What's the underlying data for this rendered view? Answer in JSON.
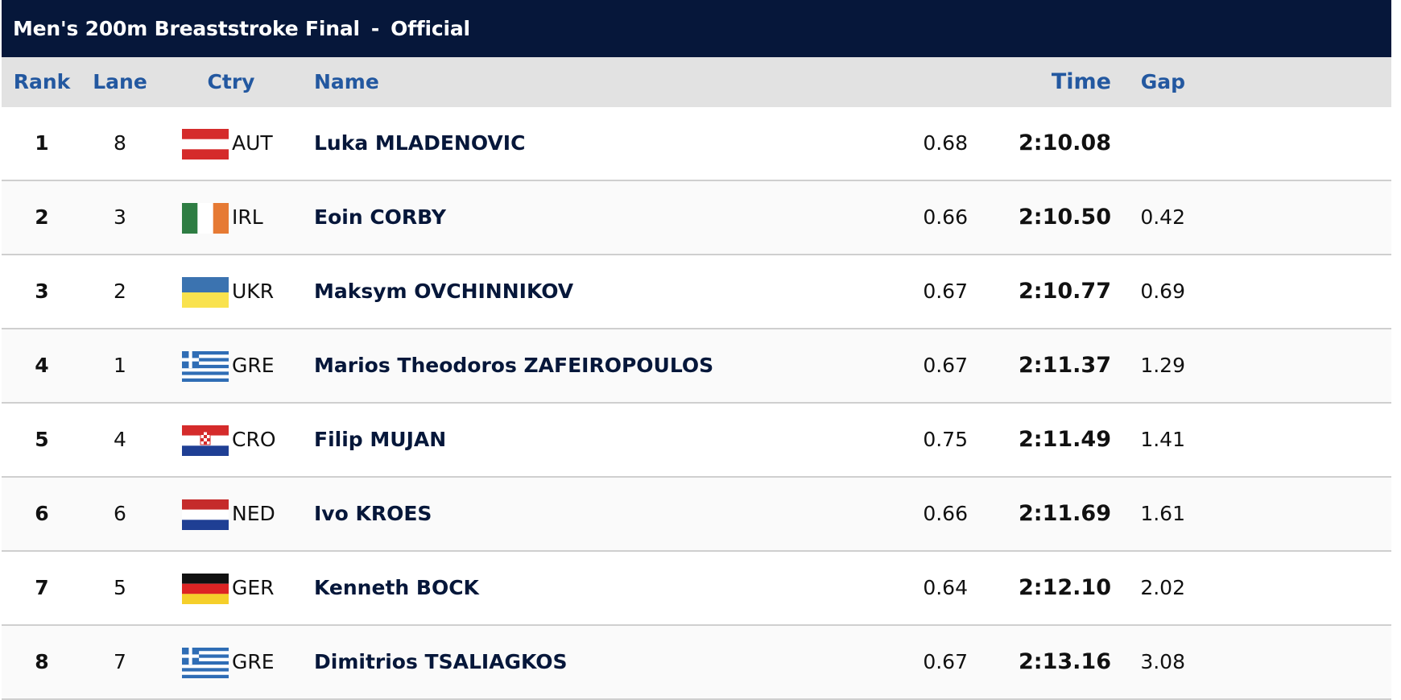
{
  "header": {
    "event": "Men's 200m Breaststroke Final",
    "separator": "-",
    "status": "Official"
  },
  "columns": {
    "rank": "Rank",
    "lane": "Lane",
    "ctry": "Ctry",
    "name": "Name",
    "time": "Time",
    "gap": "Gap"
  },
  "rows": [
    {
      "rank": "1",
      "lane": "8",
      "ctry": "AUT",
      "flag": "austria-flag",
      "name": "Luka MLADENOVIC",
      "reaction": "0.68",
      "time": "2:10.08",
      "gap": ""
    },
    {
      "rank": "2",
      "lane": "3",
      "ctry": "IRL",
      "flag": "ireland-flag",
      "name": "Eoin CORBY",
      "reaction": "0.66",
      "time": "2:10.50",
      "gap": "0.42"
    },
    {
      "rank": "3",
      "lane": "2",
      "ctry": "UKR",
      "flag": "ukraine-flag",
      "name": "Maksym OVCHINNIKOV",
      "reaction": "0.67",
      "time": "2:10.77",
      "gap": "0.69"
    },
    {
      "rank": "4",
      "lane": "1",
      "ctry": "GRE",
      "flag": "greece-flag",
      "name": "Marios Theodoros ZAFEIROPOULOS",
      "reaction": "0.67",
      "time": "2:11.37",
      "gap": "1.29"
    },
    {
      "rank": "5",
      "lane": "4",
      "ctry": "CRO",
      "flag": "croatia-flag",
      "name": "Filip MUJAN",
      "reaction": "0.75",
      "time": "2:11.49",
      "gap": "1.41"
    },
    {
      "rank": "6",
      "lane": "6",
      "ctry": "NED",
      "flag": "netherlands-flag",
      "name": "Ivo KROES",
      "reaction": "0.66",
      "time": "2:11.69",
      "gap": "1.61"
    },
    {
      "rank": "7",
      "lane": "5",
      "ctry": "GER",
      "flag": "germany-flag",
      "name": "Kenneth BOCK",
      "reaction": "0.64",
      "time": "2:12.10",
      "gap": "2.02"
    },
    {
      "rank": "8",
      "lane": "7",
      "ctry": "GRE",
      "flag": "greece-flag",
      "name": "Dimitrios TSALIAGKOS",
      "reaction": "0.67",
      "time": "2:13.16",
      "gap": "3.08"
    }
  ],
  "colors": {
    "title_bg": "#06173a",
    "header_text": "#2358a0",
    "header_bg": "#e2e2e2"
  }
}
